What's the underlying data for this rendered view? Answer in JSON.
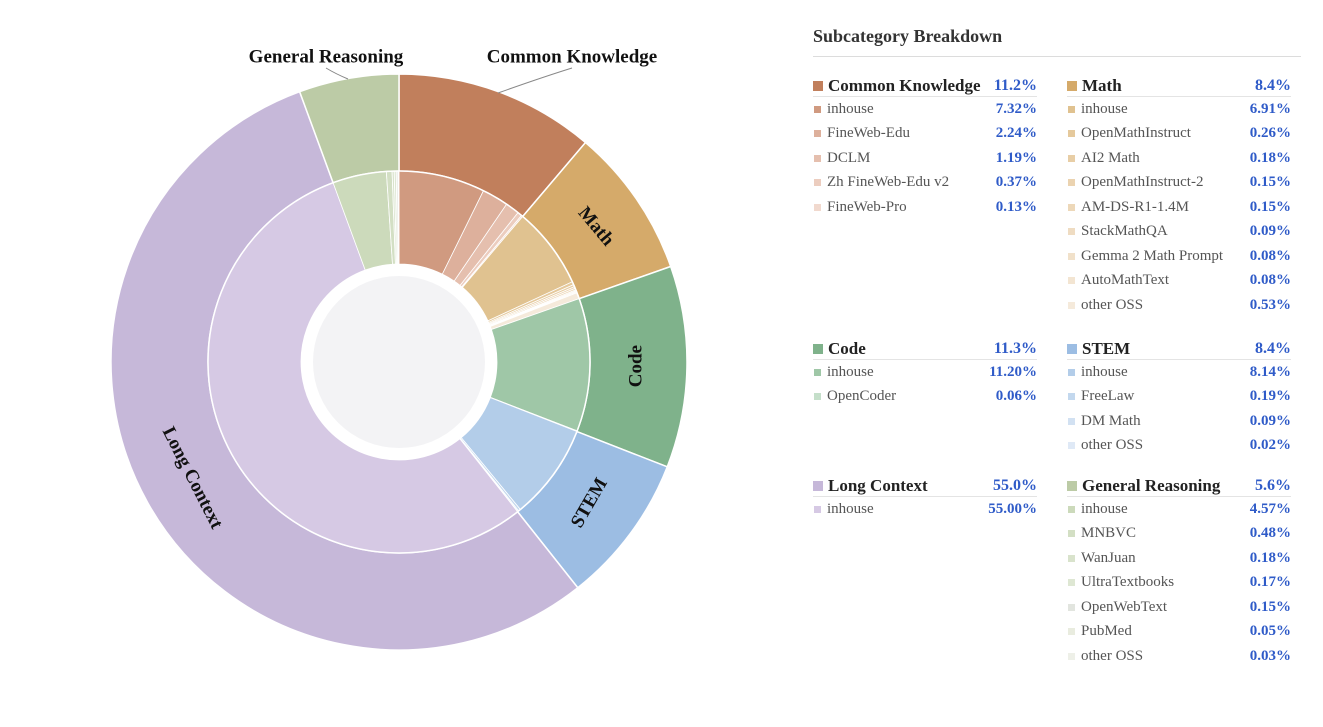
{
  "chart_data": {
    "type": "sunburst",
    "outer_labels": {
      "General Reasoning": "General Reasoning",
      "Common Knowledge": "Common Knowledge",
      "Math": "Math",
      "Code": "Code",
      "STEM": "STEM",
      "Long Context": "Long Context"
    },
    "categories": [
      {
        "name": "Common Knowledge",
        "value": 11.2,
        "pct": "11.2%",
        "color": "#c17f5c",
        "light": "#d49f85",
        "items": [
          {
            "name": "inhouse",
            "value": 7.32,
            "pct": "7.32%",
            "color": "#d09a80"
          },
          {
            "name": "FineWeb-Edu",
            "value": 2.24,
            "pct": "2.24%",
            "color": "#ddb09c"
          },
          {
            "name": "DCLM",
            "value": 1.19,
            "pct": "1.19%",
            "color": "#e5bfae"
          },
          {
            "name": "Zh FineWeb-Edu v2",
            "value": 0.37,
            "pct": "0.37%",
            "color": "#eccdbf"
          },
          {
            "name": "FineWeb-Pro",
            "value": 0.13,
            "pct": "0.13%",
            "color": "#f1d9ce"
          }
        ]
      },
      {
        "name": "Math",
        "value": 8.4,
        "pct": "8.4%",
        "color": "#d5aa6a",
        "light": "#e2c391",
        "items": [
          {
            "name": "inhouse",
            "value": 6.91,
            "pct": "6.91%",
            "color": "#e0c290"
          },
          {
            "name": "OpenMathInstruct",
            "value": 0.26,
            "pct": "0.26%",
            "color": "#e5c99c"
          },
          {
            "name": "AI2 Math",
            "value": 0.18,
            "pct": "0.18%",
            "color": "#e8cea6"
          },
          {
            "name": "OpenMathInstruct-2",
            "value": 0.15,
            "pct": "0.15%",
            "color": "#ebd3b0"
          },
          {
            "name": "AM-DS-R1-1.4M",
            "value": 0.15,
            "pct": "0.15%",
            "color": "#edd8b9"
          },
          {
            "name": "StackMathQA",
            "value": 0.09,
            "pct": "0.09%",
            "color": "#efdcc2"
          },
          {
            "name": "Gemma 2 Math Prompt",
            "value": 0.08,
            "pct": "0.08%",
            "color": "#f1e1ca"
          },
          {
            "name": "AutoMathText",
            "value": 0.08,
            "pct": "0.08%",
            "color": "#f3e5d2"
          },
          {
            "name": "other OSS",
            "value": 0.53,
            "pct": "0.53%",
            "color": "#f5eadb"
          }
        ]
      },
      {
        "name": "Code",
        "value": 11.3,
        "pct": "11.3%",
        "color": "#7fb28b",
        "light": "#a0c9a8",
        "items": [
          {
            "name": "inhouse",
            "value": 11.2,
            "pct": "11.20%",
            "color": "#9fc7a7"
          },
          {
            "name": "OpenCoder",
            "value": 0.06,
            "pct": "0.06%",
            "color": "#c5dfca"
          }
        ]
      },
      {
        "name": "STEM",
        "value": 8.4,
        "pct": "8.4%",
        "color": "#9cbde3",
        "light": "#b6d0ea",
        "items": [
          {
            "name": "inhouse",
            "value": 8.14,
            "pct": "8.14%",
            "color": "#b3cde9"
          },
          {
            "name": "FreeLaw",
            "value": 0.19,
            "pct": "0.19%",
            "color": "#c3d8ee"
          },
          {
            "name": "DM Math",
            "value": 0.09,
            "pct": "0.09%",
            "color": "#d2e1f2"
          },
          {
            "name": "other OSS",
            "value": 0.02,
            "pct": "0.02%",
            "color": "#dfe9f6"
          }
        ]
      },
      {
        "name": "Long Context",
        "value": 55.0,
        "pct": "55.0%",
        "color": "#c6b8d9",
        "light": "#d8cbe5",
        "items": [
          {
            "name": "inhouse",
            "value": 55.0,
            "pct": "55.00%",
            "color": "#d6c9e4"
          }
        ]
      },
      {
        "name": "General Reasoning",
        "value": 5.6,
        "pct": "5.6%",
        "color": "#bccba6",
        "light": "#cfdcbd",
        "items": [
          {
            "name": "inhouse",
            "value": 4.57,
            "pct": "4.57%",
            "color": "#ccdabb"
          },
          {
            "name": "MNBVC",
            "value": 0.48,
            "pct": "0.48%",
            "color": "#d3dfc4"
          },
          {
            "name": "WanJuan",
            "value": 0.18,
            "pct": "0.18%",
            "color": "#d9e3cc"
          },
          {
            "name": "UltraTextbooks",
            "value": 0.17,
            "pct": "0.17%",
            "color": "#dee7d3"
          },
          {
            "name": "OpenWebText",
            "value": 0.15,
            "pct": "0.15%",
            "color": "#e2e5df"
          },
          {
            "name": "PubMed",
            "value": 0.05,
            "pct": "0.05%",
            "color": "#e9ecdf"
          },
          {
            "name": "other OSS",
            "value": 0.03,
            "pct": "0.03%",
            "color": "#eef0e8"
          }
        ]
      }
    ]
  },
  "breakdown": {
    "title": "Subcategory Breakdown",
    "order": [
      "Common Knowledge",
      "Math",
      "Code",
      "STEM",
      "Long Context",
      "General Reasoning"
    ]
  }
}
